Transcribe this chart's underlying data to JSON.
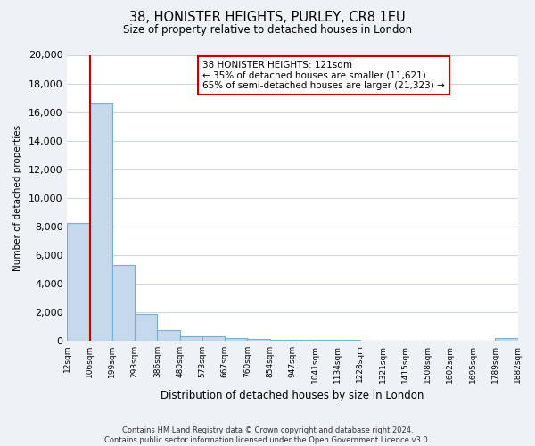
{
  "title": "38, HONISTER HEIGHTS, PURLEY, CR8 1EU",
  "subtitle": "Size of property relative to detached houses in London",
  "xlabel": "Distribution of detached houses by size in London",
  "ylabel": "Number of detached properties",
  "bar_values": [
    8200,
    16600,
    5300,
    1850,
    750,
    300,
    270,
    150,
    100,
    50,
    30,
    20,
    15,
    10,
    5,
    5,
    5,
    5,
    5,
    150
  ],
  "bar_labels": [
    "12sqm",
    "106sqm",
    "199sqm",
    "293sqm",
    "386sqm",
    "480sqm",
    "573sqm",
    "667sqm",
    "760sqm",
    "854sqm",
    "947sqm",
    "1041sqm",
    "1134sqm",
    "1228sqm",
    "1321sqm",
    "1415sqm",
    "1508sqm",
    "1602sqm",
    "1695sqm",
    "1789sqm",
    "1882sqm"
  ],
  "bar_color": "#c5d8ec",
  "bar_edge_color": "#7aaed0",
  "vline_color": "#cc0000",
  "annotation_title": "38 HONISTER HEIGHTS: 121sqm",
  "annotation_line1": "← 35% of detached houses are smaller (11,621)",
  "annotation_line2": "65% of semi-detached houses are larger (21,323) →",
  "annotation_box_color": "#ffffff",
  "annotation_box_edge": "#cc0000",
  "ylim": [
    0,
    20000
  ],
  "yticks": [
    0,
    2000,
    4000,
    6000,
    8000,
    10000,
    12000,
    14000,
    16000,
    18000,
    20000
  ],
  "footer_line1": "Contains HM Land Registry data © Crown copyright and database right 2024.",
  "footer_line2": "Contains public sector information licensed under the Open Government Licence v3.0.",
  "bg_color": "#eef2f7",
  "plot_bg_color": "#ffffff",
  "grid_color": "#c8d8e8"
}
